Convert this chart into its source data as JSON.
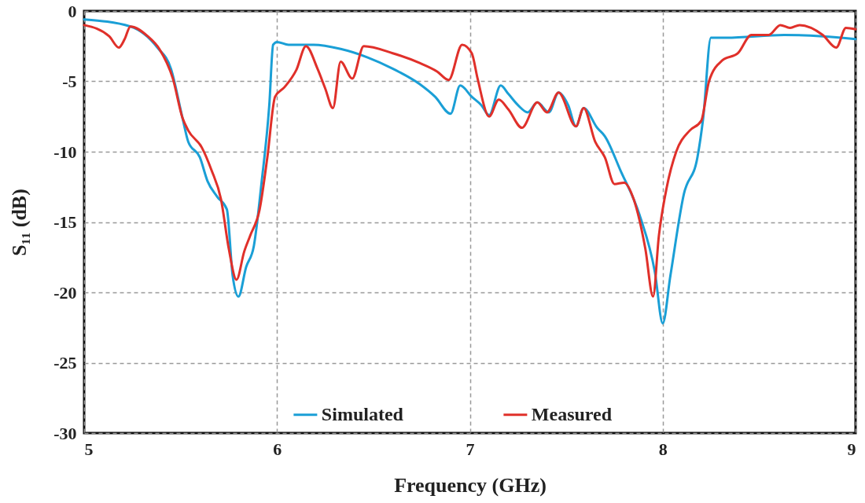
{
  "chart_data": {
    "type": "line",
    "xlabel": "Frequency (GHz)",
    "ylabel": "S₁₁ (dB)",
    "xlim": [
      5,
      9
    ],
    "xticks": [
      5,
      6,
      7,
      8,
      9
    ],
    "ylim": [
      -30,
      0
    ],
    "yticks": [
      -30,
      -25,
      -20,
      -15,
      -10,
      -5,
      0
    ],
    "grid": true,
    "legend": "bottom",
    "series": [
      {
        "name": "Simulated",
        "color": "#1a9fd6",
        "x": [
          5.0,
          5.24,
          5.38,
          5.45,
          5.51,
          5.54,
          5.6,
          5.64,
          5.69,
          5.74,
          5.77,
          5.8,
          5.84,
          5.88,
          5.92,
          5.96,
          5.98,
          6.0,
          6.06,
          6.19,
          6.33,
          6.47,
          6.6,
          6.74,
          6.82,
          6.9,
          6.95,
          7.01,
          7.06,
          7.1,
          7.16,
          7.2,
          7.25,
          7.3,
          7.35,
          7.41,
          7.46,
          7.51,
          7.55,
          7.59,
          7.66,
          7.7,
          7.78,
          7.88,
          7.96,
          8.0,
          8.04,
          8.11,
          8.18,
          8.21,
          8.25,
          8.33,
          8.63,
          8.83,
          9.0
        ],
        "values": [
          -0.6,
          -1.1,
          -2.6,
          -4.1,
          -7.6,
          -9.3,
          -10.4,
          -12.1,
          -13.2,
          -14.1,
          -18.8,
          -20.3,
          -18.2,
          -16.7,
          -12.2,
          -6.7,
          -2.4,
          -2.2,
          -2.4,
          -2.4,
          -2.7,
          -3.3,
          -4.1,
          -5.2,
          -6.1,
          -7.3,
          -5.3,
          -6.1,
          -6.7,
          -7.4,
          -5.3,
          -5.9,
          -6.7,
          -7.2,
          -6.5,
          -7.2,
          -5.8,
          -6.7,
          -8.2,
          -6.9,
          -8.3,
          -8.9,
          -11.3,
          -14.5,
          -18.6,
          -22.2,
          -18.8,
          -13.0,
          -10.4,
          -7.6,
          -1.9,
          -1.9,
          -1.7,
          -1.8,
          -2.0
        ]
      },
      {
        "name": "Measured",
        "color": "#e0302a",
        "x": [
          5.0,
          5.13,
          5.18,
          5.21,
          5.24,
          5.33,
          5.39,
          5.46,
          5.51,
          5.54,
          5.61,
          5.66,
          5.71,
          5.75,
          5.79,
          5.83,
          5.86,
          5.91,
          5.95,
          5.99,
          6.04,
          6.1,
          6.15,
          6.21,
          6.25,
          6.29,
          6.33,
          6.39,
          6.45,
          6.6,
          6.74,
          6.83,
          6.89,
          6.96,
          7.01,
          7.04,
          7.1,
          7.15,
          7.2,
          7.27,
          7.35,
          7.4,
          7.46,
          7.55,
          7.59,
          7.65,
          7.7,
          7.75,
          7.8,
          7.85,
          7.91,
          7.95,
          7.98,
          8.02,
          8.07,
          8.14,
          8.2,
          8.24,
          8.31,
          8.39,
          8.46,
          8.55,
          8.61,
          8.66,
          8.71,
          8.83,
          8.9,
          8.95,
          9.0
        ],
        "values": [
          -1.0,
          -1.8,
          -2.6,
          -2.0,
          -1.1,
          -1.8,
          -2.7,
          -4.8,
          -7.6,
          -8.5,
          -9.7,
          -11.3,
          -13.4,
          -16.9,
          -19.1,
          -17.1,
          -16.0,
          -14.1,
          -10.4,
          -6.1,
          -5.4,
          -4.2,
          -2.5,
          -4.1,
          -5.5,
          -6.9,
          -3.6,
          -4.8,
          -2.5,
          -3.0,
          -3.7,
          -4.3,
          -4.9,
          -2.4,
          -3.0,
          -4.8,
          -7.5,
          -6.3,
          -7.0,
          -8.3,
          -6.5,
          -7.2,
          -5.8,
          -8.2,
          -6.9,
          -9.3,
          -10.4,
          -12.3,
          -12.2,
          -13.4,
          -16.9,
          -20.3,
          -16.0,
          -12.6,
          -10.0,
          -8.5,
          -7.8,
          -5.0,
          -3.5,
          -3.0,
          -1.7,
          -1.7,
          -1.0,
          -1.2,
          -1.0,
          -1.7,
          -2.6,
          -1.2,
          -1.3
        ]
      }
    ]
  }
}
